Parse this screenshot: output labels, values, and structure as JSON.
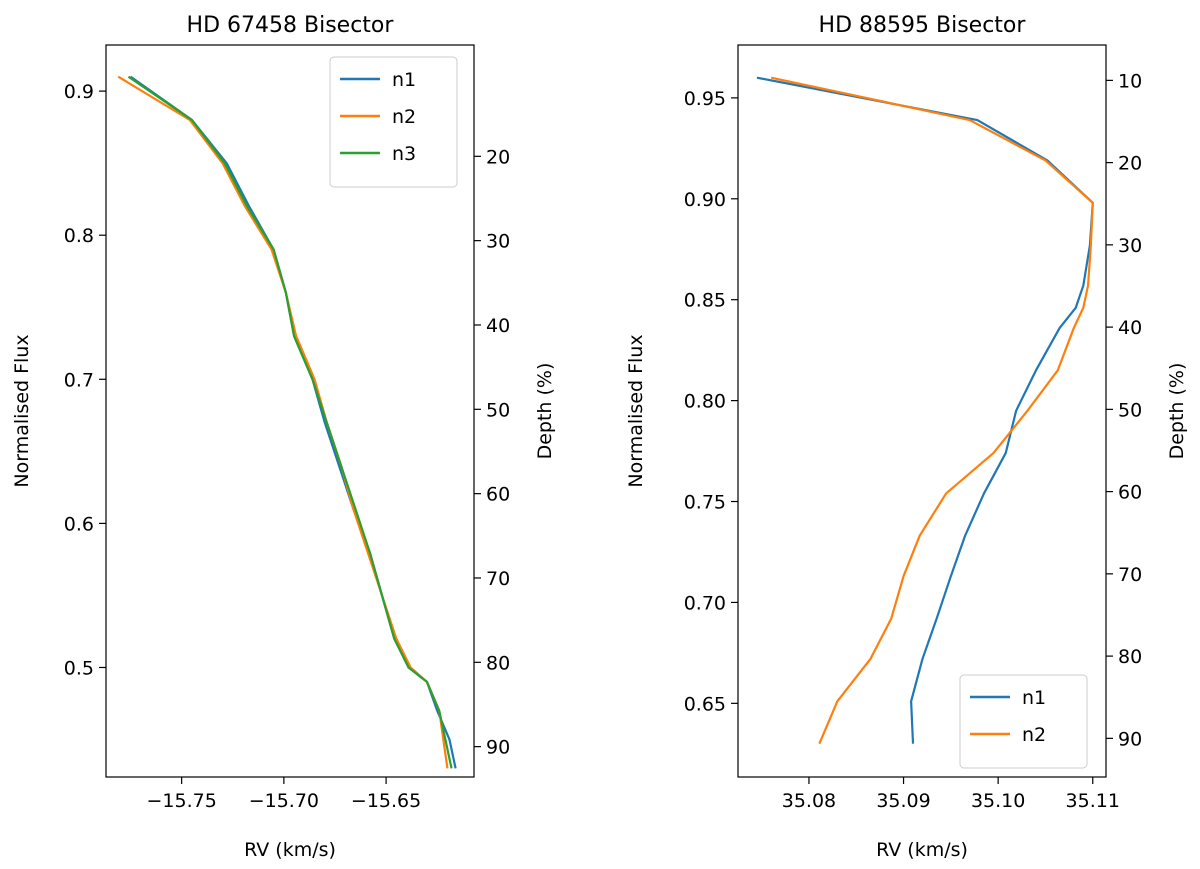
{
  "chart_data": [
    {
      "type": "line",
      "title": "HD 67458 Bisector",
      "xlabel": "RV (km/s)",
      "ylabel": "Normalised Flux",
      "ylabel_right": "Depth (%)",
      "xlim": [
        -15.787,
        -15.607
      ],
      "ylim": [
        0.424,
        0.932
      ],
      "xticks": [
        -15.75,
        -15.7,
        -15.65
      ],
      "xtick_labels": [
        "−15.75",
        "−15.70",
        "−15.65"
      ],
      "yticks": [
        0.5,
        0.6,
        0.7,
        0.8,
        0.9
      ],
      "ytick_labels": [
        "0.5",
        "0.6",
        "0.7",
        "0.8",
        "0.9"
      ],
      "depth_ticks": [
        20,
        30,
        40,
        50,
        60,
        70,
        80,
        90
      ],
      "depth_tick_labels": [
        "20",
        "30",
        "40",
        "50",
        "60",
        "70",
        "80",
        "90"
      ],
      "depth_lim": [
        93.6,
        6.8
      ],
      "legend_position": "upper right",
      "series": [
        {
          "name": "n1",
          "color": "#1f77b4",
          "x": [
            -15.775,
            -15.745,
            -15.728,
            -15.717,
            -15.705,
            -15.699,
            -15.695,
            -15.686,
            -15.68,
            -15.673,
            -15.666,
            -15.658,
            -15.652,
            -15.646,
            -15.639,
            -15.63,
            -15.625,
            -15.619,
            -15.616
          ],
          "y": [
            0.91,
            0.88,
            0.85,
            0.82,
            0.79,
            0.76,
            0.73,
            0.7,
            0.67,
            0.64,
            0.61,
            0.58,
            0.55,
            0.52,
            0.5,
            0.49,
            0.47,
            0.45,
            0.43
          ]
        },
        {
          "name": "n2",
          "color": "#ff7f0e",
          "x": [
            -15.781,
            -15.746,
            -15.73,
            -15.719,
            -15.706,
            -15.699,
            -15.694,
            -15.685,
            -15.679,
            -15.672,
            -15.666,
            -15.659,
            -15.652,
            -15.645,
            -15.638,
            -15.63,
            -15.624,
            -15.622,
            -15.62
          ],
          "y": [
            0.91,
            0.88,
            0.85,
            0.82,
            0.79,
            0.76,
            0.73,
            0.7,
            0.67,
            0.64,
            0.61,
            0.58,
            0.55,
            0.52,
            0.5,
            0.49,
            0.47,
            0.45,
            0.43
          ]
        },
        {
          "name": "n3",
          "color": "#2ca02c",
          "x": [
            -15.776,
            -15.745,
            -15.729,
            -15.718,
            -15.705,
            -15.699,
            -15.695,
            -15.686,
            -15.679,
            -15.672,
            -15.665,
            -15.658,
            -15.652,
            -15.646,
            -15.639,
            -15.63,
            -15.624,
            -15.621,
            -15.618
          ],
          "y": [
            0.91,
            0.88,
            0.85,
            0.82,
            0.79,
            0.76,
            0.73,
            0.7,
            0.67,
            0.64,
            0.61,
            0.58,
            0.55,
            0.52,
            0.5,
            0.49,
            0.47,
            0.45,
            0.43
          ]
        }
      ]
    },
    {
      "type": "line",
      "title": "HD 88595 Bisector",
      "xlabel": "RV (km/s)",
      "ylabel": "Normalised Flux",
      "ylabel_right": "Depth (%)",
      "xlim": [
        35.0725,
        35.1114
      ],
      "ylim": [
        0.6135,
        0.9762
      ],
      "xticks": [
        35.08,
        35.09,
        35.1,
        35.11
      ],
      "xtick_labels": [
        "35.08",
        "35.09",
        "35.10",
        "35.11"
      ],
      "yticks": [
        0.65,
        0.7,
        0.75,
        0.8,
        0.85,
        0.9,
        0.95
      ],
      "ytick_labels": [
        "0.65",
        "0.70",
        "0.75",
        "0.80",
        "0.85",
        "0.90",
        "0.95"
      ],
      "depth_ticks": [
        10,
        20,
        30,
        40,
        50,
        60,
        70,
        80,
        90
      ],
      "depth_tick_labels": [
        "10",
        "20",
        "30",
        "40",
        "50",
        "60",
        "70",
        "80",
        "90"
      ],
      "depth_lim": [
        94.7,
        5.7
      ],
      "legend_position": "lower right",
      "series": [
        {
          "name": "n1",
          "color": "#1f77b4",
          "x": [
            35.0745,
            35.0978,
            35.1052,
            35.11,
            35.1097,
            35.109,
            35.1082,
            35.1065,
            35.104,
            35.1019,
            35.1008,
            35.0985,
            35.0965,
            35.095,
            35.0935,
            35.092,
            35.0908,
            35.091
          ],
          "y": [
            0.96,
            0.939,
            0.919,
            0.898,
            0.877,
            0.857,
            0.846,
            0.836,
            0.815,
            0.795,
            0.774,
            0.754,
            0.733,
            0.713,
            0.692,
            0.672,
            0.651,
            0.63
          ]
        },
        {
          "name": "n2",
          "color": "#ff7f0e",
          "x": [
            35.076,
            35.097,
            35.105,
            35.11,
            35.1098,
            35.1095,
            35.109,
            35.108,
            35.1063,
            35.1031,
            35.0995,
            35.0945,
            35.0917,
            35.09,
            35.0887,
            35.0865,
            35.083,
            35.0811
          ],
          "y": [
            0.96,
            0.939,
            0.919,
            0.898,
            0.877,
            0.857,
            0.846,
            0.836,
            0.815,
            0.795,
            0.774,
            0.754,
            0.733,
            0.713,
            0.692,
            0.672,
            0.651,
            0.63
          ]
        }
      ]
    }
  ]
}
